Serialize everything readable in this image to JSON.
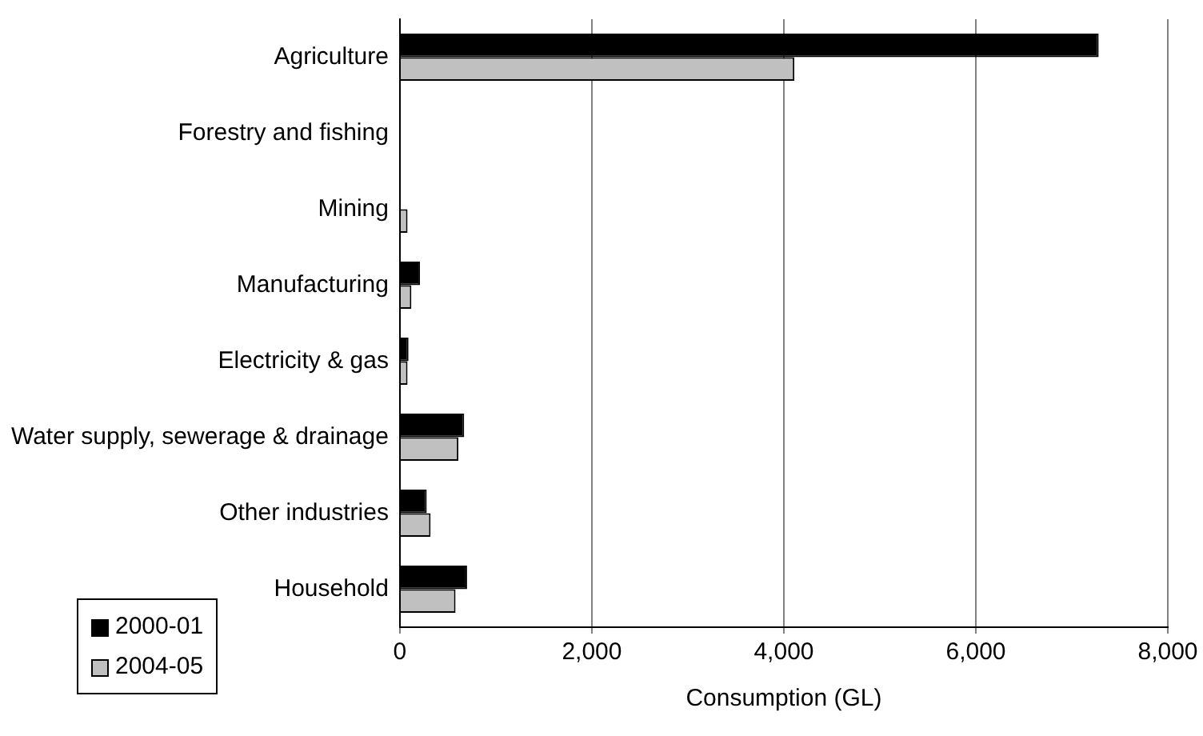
{
  "chart_data": {
    "type": "bar",
    "orientation": "horizontal",
    "xlabel": "Consumption (GL)",
    "categories": [
      "Agriculture",
      "Forestry and fishing",
      "Mining",
      "Manufacturing",
      "Electricity & gas",
      "Water supply, sewerage & drainage",
      "Other industries",
      "Household"
    ],
    "series": [
      {
        "name": "2000-01",
        "color": "#000000",
        "values": [
          7280,
          0,
          0,
          210,
          90,
          670,
          280,
          700
        ]
      },
      {
        "name": "2004-05",
        "color": "#c0c0c0",
        "values": [
          4110,
          0,
          80,
          120,
          80,
          610,
          320,
          580
        ]
      }
    ],
    "xlim": [
      0,
      8000
    ],
    "xticks": [
      {
        "value": 0,
        "label": "0"
      },
      {
        "value": 2000,
        "label": "2,000"
      },
      {
        "value": 4000,
        "label": "4,000"
      },
      {
        "value": 6000,
        "label": "6,000"
      },
      {
        "value": 8000,
        "label": "8,000"
      }
    ],
    "grid": "x",
    "legend": "bottom left"
  }
}
